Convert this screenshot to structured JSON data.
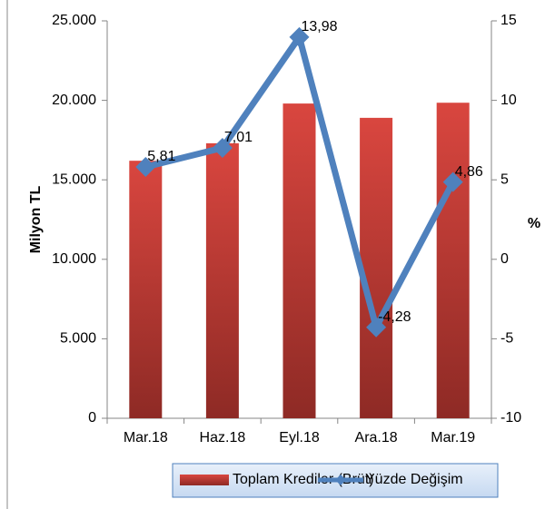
{
  "chart_data": {
    "type": "bar_line",
    "categories": [
      "Mar.18",
      "Haz.18",
      "Eyl.18",
      "Ara.18",
      "Mar.19"
    ],
    "series": [
      {
        "name": "Toplam Krediler (Brüt)",
        "type": "bar",
        "color": "#c0403a",
        "values": [
          16200,
          17300,
          19800,
          18900,
          19850
        ]
      },
      {
        "name": "Yüzde Değişim",
        "type": "line",
        "axis": "y2",
        "color": "#4f81bd",
        "values": [
          5.81,
          7.01,
          13.98,
          -4.28,
          4.86
        ],
        "value_labels": [
          "5,81",
          "7,01",
          "13,98",
          "-4,28",
          "4,86"
        ]
      }
    ],
    "ylabel": "Milyon TL",
    "y2label": "%",
    "ylim": [
      0,
      25000
    ],
    "yticks": [
      {
        "value": 0,
        "label": "0"
      },
      {
        "value": 5000,
        "label": "5.000"
      },
      {
        "value": 10000,
        "label": "10.000"
      },
      {
        "value": 15000,
        "label": "15.000"
      },
      {
        "value": 20000,
        "label": "20.000"
      },
      {
        "value": 25000,
        "label": "25.000"
      }
    ],
    "y2lim": [
      -10,
      15
    ],
    "y2ticks": [
      -10,
      -5,
      0,
      5,
      10,
      15
    ],
    "legend": "bottom"
  }
}
